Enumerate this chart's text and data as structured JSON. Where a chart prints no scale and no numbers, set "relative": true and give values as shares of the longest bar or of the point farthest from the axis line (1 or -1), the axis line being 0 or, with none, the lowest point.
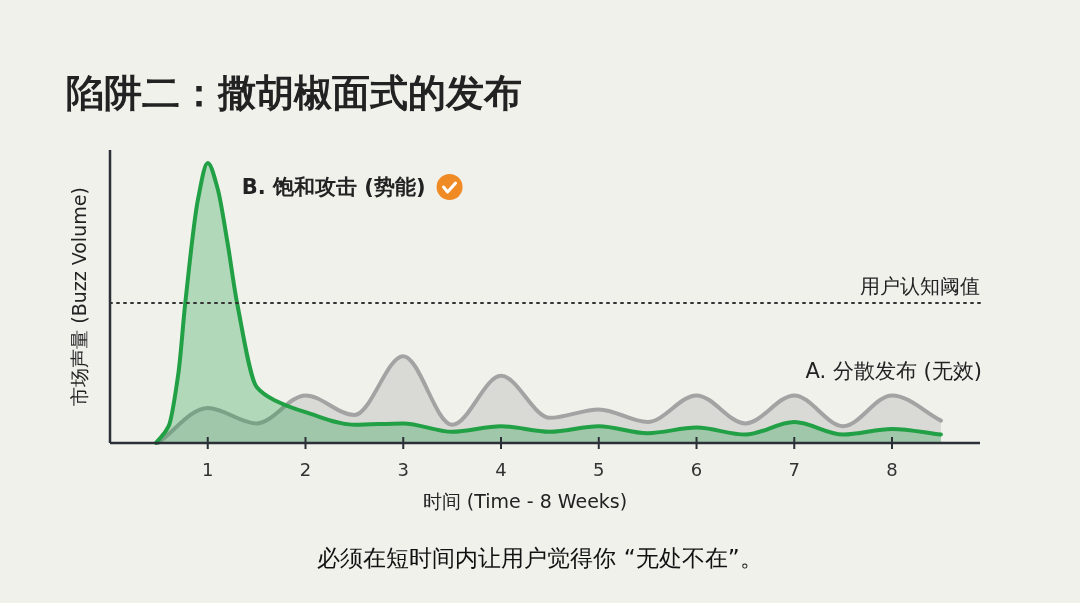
{
  "chart_data": {
    "type": "area",
    "title": "陷阱二：撒胡椒面式的发布",
    "xlabel": "时间 (Time - 8 Weeks)",
    "ylabel": "市场声量 (Buzz Volume)",
    "relative": true,
    "xlim": [
      0,
      8.9
    ],
    "xticks": [
      1,
      2,
      3,
      4,
      5,
      6,
      7,
      8
    ],
    "series": [
      {
        "name": "A. 分散发布 (无效)",
        "color": "#a3a3a3",
        "x": [
          0.49,
          1,
          1.5,
          2,
          2.5,
          3,
          3.5,
          4,
          4.5,
          5,
          5.5,
          6,
          6.5,
          7,
          7.5,
          8,
          8.5
        ],
        "values": [
          0,
          0.125,
          0.07,
          0.17,
          0.1,
          0.31,
          0.065,
          0.24,
          0.09,
          0.12,
          0.075,
          0.17,
          0.07,
          0.17,
          0.06,
          0.17,
          0.08
        ]
      },
      {
        "name": "B. 饱和攻击 (势能)",
        "color": "#22a045",
        "x": [
          0.47,
          0.6,
          0.7,
          0.77,
          0.9,
          1,
          1.1,
          1.2,
          1.3,
          1.5,
          1.7,
          2,
          2.5,
          3,
          3.5,
          4,
          4.5,
          5,
          5.5,
          6,
          6.5,
          7,
          7.5,
          8,
          8.5
        ],
        "values": [
          0,
          0.06,
          0.25,
          0.5,
          0.87,
          1,
          0.91,
          0.72,
          0.5,
          0.2,
          0.15,
          0.11,
          0.065,
          0.07,
          0.04,
          0.06,
          0.04,
          0.06,
          0.035,
          0.055,
          0.03,
          0.075,
          0.03,
          0.05,
          0.03
        ]
      }
    ],
    "ref_lines": [
      {
        "axis": "y",
        "value": 0.5,
        "label": "用户认知阈值",
        "line_style": "dotted"
      }
    ],
    "annotations": [
      "必须在短时间内让用户觉得你 “无处不在”。"
    ]
  }
}
